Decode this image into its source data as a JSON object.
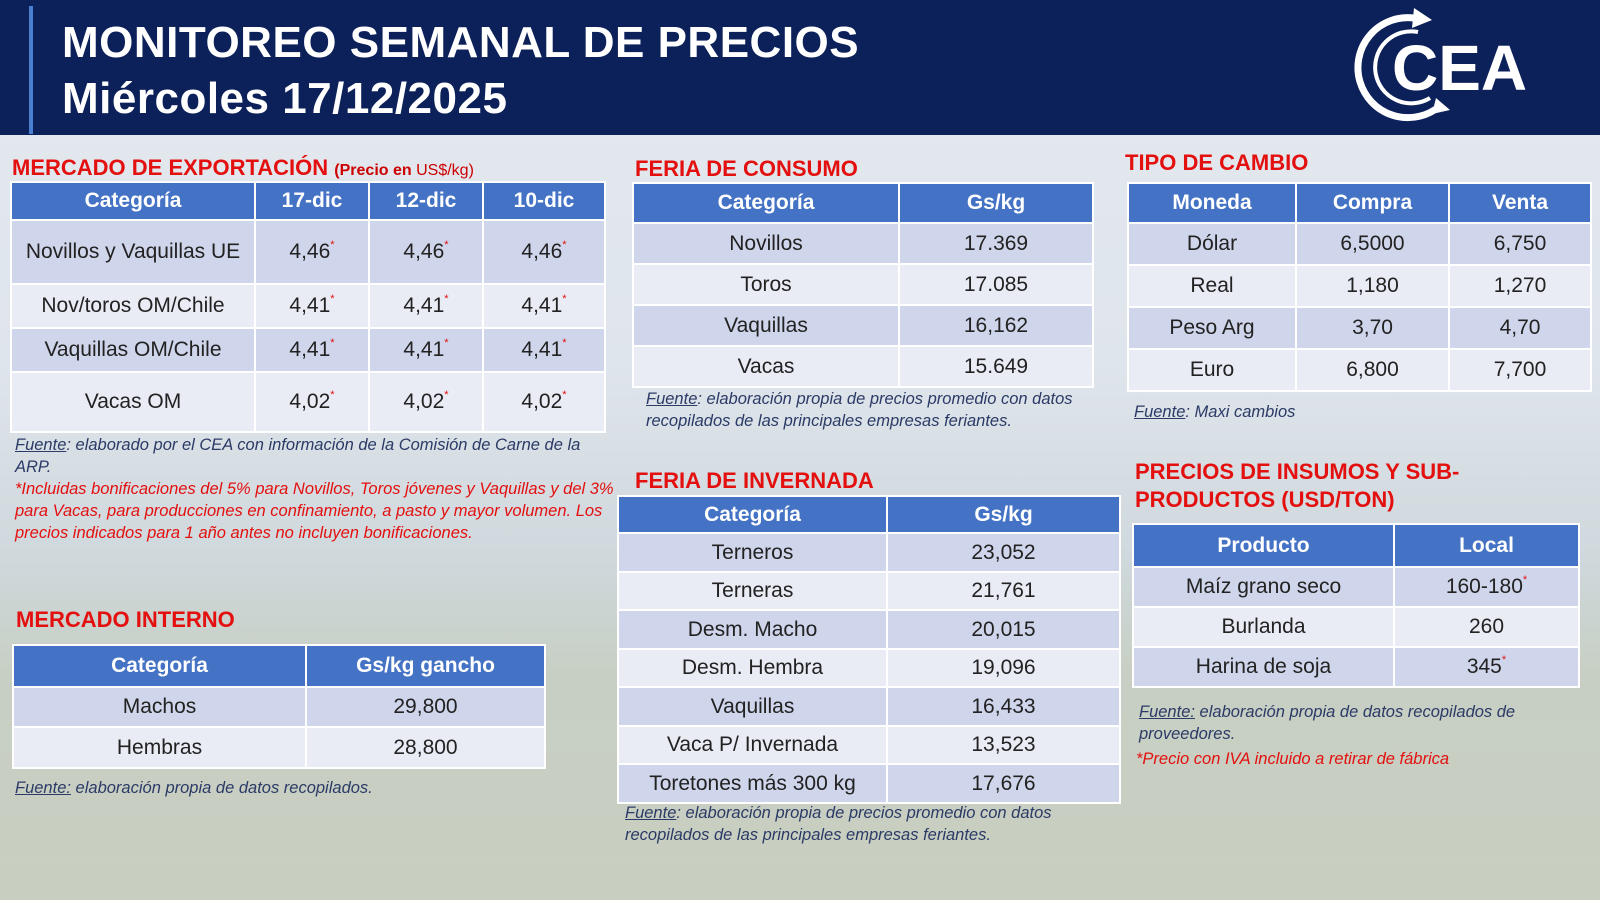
{
  "header": {
    "title": "MONITOREO SEMANAL DE PRECIOS",
    "date": "Miércoles 17/12/2025",
    "logo_text": "CEA"
  },
  "export": {
    "title": "MERCADO DE EXPORTACIÓN",
    "subtitle_bold": "(Precio en",
    "subtitle_unit": "US$/kg)",
    "columns": [
      "Categoría",
      "17-dic",
      "12-dic",
      "10-dic"
    ],
    "rows": [
      {
        "cat": "Novillos y Vaquillas UE",
        "v": [
          "4,46",
          "4,46",
          "4,46"
        ]
      },
      {
        "cat": "Nov/toros OM/Chile",
        "v": [
          "4,41",
          "4,41",
          "4,41"
        ]
      },
      {
        "cat": "Vaquillas OM/Chile",
        "v": [
          "4,41",
          "4,41",
          "4,41"
        ]
      },
      {
        "cat": "Vacas OM",
        "v": [
          "4,02",
          "4,02",
          "4,02"
        ]
      }
    ],
    "source_label": "Fuente",
    "source_text": ": elaborado por el CEA con información de la Comisión de Carne de la ARP.",
    "footnote": "*Incluidas bonificaciones del 5% para Novillos, Toros jóvenes y Vaquillas y del 3% para Vacas, para producciones en confinamiento, a pasto y mayor volumen. Los precios indicados para 1 año antes no incluyen bonificaciones."
  },
  "interno": {
    "title": "MERCADO INTERNO",
    "columns": [
      "Categoría",
      "Gs/kg gancho"
    ],
    "rows": [
      {
        "cat": "Machos",
        "v": "29,800"
      },
      {
        "cat": "Hembras",
        "v": "28,800"
      }
    ],
    "source_label": "Fuente:",
    "source_text": " elaboración propia de datos recopilados."
  },
  "consumo": {
    "title": "FERIA DE CONSUMO",
    "columns": [
      "Categoría",
      "Gs/kg"
    ],
    "rows": [
      {
        "cat": "Novillos",
        "v": "17.369"
      },
      {
        "cat": "Toros",
        "v": "17.085"
      },
      {
        "cat": "Vaquillas",
        "v": "16,162"
      },
      {
        "cat": "Vacas",
        "v": "15.649"
      }
    ],
    "source_label": "Fuente",
    "source_text": ": elaboración propia de precios promedio con datos recopilados de las principales empresas feriantes."
  },
  "invernada": {
    "title": "FERIA DE INVERNADA",
    "columns": [
      "Categoría",
      "Gs/kg"
    ],
    "rows": [
      {
        "cat": "Terneros",
        "v": "23,052"
      },
      {
        "cat": "Terneras",
        "v": "21,761"
      },
      {
        "cat": "Desm. Macho",
        "v": "20,015"
      },
      {
        "cat": "Desm. Hembra",
        "v": "19,096"
      },
      {
        "cat": "Vaquillas",
        "v": "16,433"
      },
      {
        "cat": "Vaca P/ Invernada",
        "v": "13,523"
      },
      {
        "cat": "Toretones más 300 kg",
        "v": "17,676"
      }
    ],
    "source_label": "Fuente",
    "source_text": ": elaboración propia de precios promedio con datos recopilados de las principales empresas feriantes."
  },
  "cambio": {
    "title": "TIPO DE CAMBIO",
    "columns": [
      "Moneda",
      "Compra",
      "Venta"
    ],
    "rows": [
      {
        "m": "Dólar",
        "c": "6,5000",
        "v": "6,750"
      },
      {
        "m": "Real",
        "c": "1,180",
        "v": "1,270"
      },
      {
        "m": "Peso Arg",
        "c": "3,70",
        "v": "4,70"
      },
      {
        "m": "Euro",
        "c": "6,800",
        "v": "7,700"
      }
    ],
    "source_label": "Fuente",
    "source_text": ": Maxi cambios"
  },
  "insumos": {
    "title": "PRECIOS DE INSUMOS Y SUB-PRODUCTOS (USD/TON)",
    "columns": [
      "Producto",
      "Local"
    ],
    "rows": [
      {
        "p": "Maíz grano seco",
        "v": "160-180",
        "star": true
      },
      {
        "p": "Burlanda",
        "v": "260",
        "star": false
      },
      {
        "p": "Harina de soja",
        "v": "345",
        "star": true
      }
    ],
    "source_label": "Fuente:",
    "source_text": " elaboración propia de datos recopilados de proveedores.",
    "footnote": "*Precio con IVA incluido a retirar de fábrica"
  },
  "colors": {
    "header_bg": "#0c2059",
    "table_header": "#4472c4",
    "row_dark": "#cfd5ea",
    "row_light": "#e9ebf5",
    "section_title": "#e3100f"
  }
}
